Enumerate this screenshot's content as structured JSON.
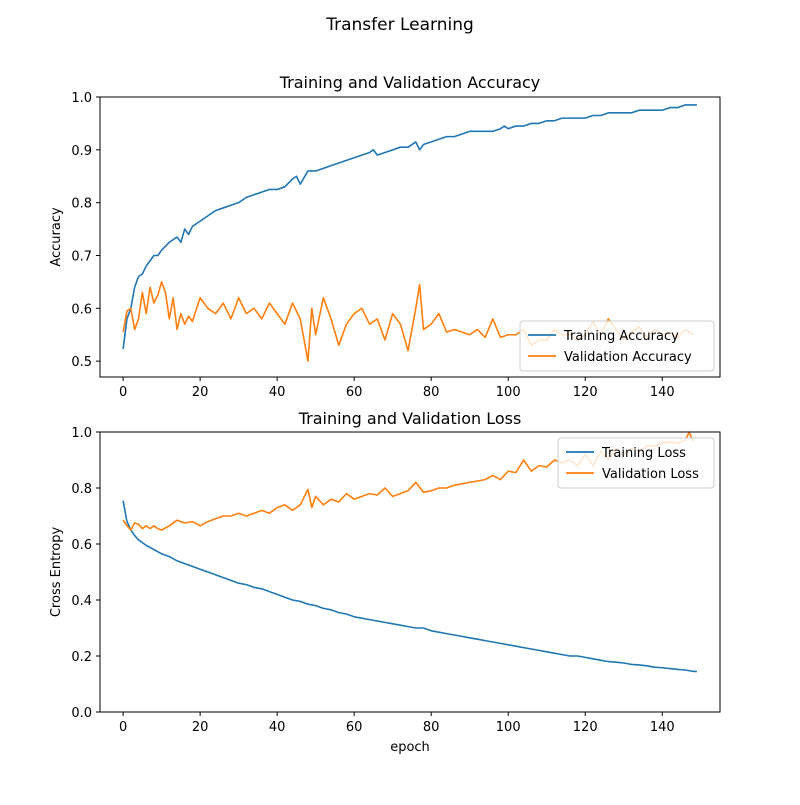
{
  "figure_title": "Transfer Learning",
  "colors": {
    "training": "#1f77b4",
    "validation": "#ff7f0e"
  },
  "chart_data": [
    {
      "type": "line",
      "title": "Training and Validation Accuracy",
      "xlabel": "",
      "ylabel": "Accuracy",
      "xlim": [
        -6,
        155
      ],
      "ylim": [
        0.47,
        1.0
      ],
      "xticks": [
        0,
        20,
        40,
        60,
        80,
        100,
        120,
        140
      ],
      "yticks": [
        0.5,
        0.6,
        0.7,
        0.8,
        0.9,
        1.0
      ],
      "ytick_labels": [
        "0.5",
        "0.6",
        "0.7",
        "0.8",
        "0.9",
        "1.0"
      ],
      "grid": false,
      "legend_position": "lower-right",
      "series": [
        {
          "name": "Training Accuracy",
          "color": "#1f77b4",
          "x": [
            0,
            1,
            2,
            3,
            4,
            5,
            6,
            7,
            8,
            9,
            10,
            12,
            14,
            15,
            16,
            17,
            18,
            20,
            22,
            24,
            26,
            28,
            30,
            32,
            34,
            36,
            38,
            40,
            42,
            44,
            45,
            46,
            48,
            50,
            52,
            54,
            56,
            58,
            60,
            62,
            64,
            65,
            66,
            68,
            70,
            72,
            74,
            76,
            77,
            78,
            80,
            82,
            84,
            86,
            88,
            90,
            92,
            94,
            96,
            98,
            99,
            100,
            102,
            104,
            106,
            108,
            110,
            112,
            114,
            116,
            118,
            120,
            122,
            124,
            126,
            128,
            130,
            132,
            134,
            136,
            138,
            140,
            142,
            144,
            146,
            148,
            149
          ],
          "y": [
            0.523,
            0.58,
            0.6,
            0.64,
            0.66,
            0.665,
            0.68,
            0.69,
            0.7,
            0.7,
            0.71,
            0.725,
            0.735,
            0.725,
            0.75,
            0.74,
            0.755,
            0.765,
            0.775,
            0.785,
            0.79,
            0.795,
            0.8,
            0.81,
            0.815,
            0.82,
            0.825,
            0.825,
            0.83,
            0.845,
            0.85,
            0.835,
            0.86,
            0.86,
            0.865,
            0.87,
            0.875,
            0.88,
            0.885,
            0.89,
            0.895,
            0.9,
            0.89,
            0.895,
            0.9,
            0.905,
            0.905,
            0.915,
            0.9,
            0.91,
            0.915,
            0.92,
            0.925,
            0.925,
            0.93,
            0.935,
            0.935,
            0.935,
            0.935,
            0.94,
            0.945,
            0.94,
            0.945,
            0.945,
            0.95,
            0.95,
            0.955,
            0.955,
            0.96,
            0.96,
            0.96,
            0.96,
            0.965,
            0.965,
            0.97,
            0.97,
            0.97,
            0.97,
            0.975,
            0.975,
            0.975,
            0.975,
            0.98,
            0.98,
            0.985,
            0.985,
            0.985
          ]
        },
        {
          "name": "Validation Accuracy",
          "color": "#ff7f0e",
          "x": [
            0,
            1,
            2,
            3,
            4,
            5,
            6,
            7,
            8,
            9,
            10,
            11,
            12,
            13,
            14,
            15,
            16,
            17,
            18,
            20,
            22,
            24,
            26,
            28,
            30,
            32,
            34,
            36,
            38,
            40,
            42,
            44,
            46,
            48,
            49,
            50,
            52,
            54,
            56,
            58,
            60,
            62,
            64,
            66,
            68,
            70,
            72,
            74,
            76,
            77,
            78,
            80,
            82,
            84,
            86,
            88,
            90,
            92,
            94,
            96,
            98,
            100,
            102,
            104,
            106,
            108,
            110,
            112,
            114,
            116,
            118,
            120,
            122,
            124,
            126,
            128,
            130,
            132,
            134,
            136,
            138,
            140,
            142,
            144,
            146,
            148
          ],
          "y": [
            0.555,
            0.595,
            0.6,
            0.56,
            0.58,
            0.63,
            0.59,
            0.64,
            0.61,
            0.625,
            0.65,
            0.63,
            0.58,
            0.62,
            0.56,
            0.59,
            0.57,
            0.585,
            0.575,
            0.62,
            0.6,
            0.59,
            0.61,
            0.58,
            0.62,
            0.59,
            0.6,
            0.58,
            0.61,
            0.59,
            0.57,
            0.61,
            0.58,
            0.5,
            0.6,
            0.55,
            0.62,
            0.58,
            0.53,
            0.57,
            0.59,
            0.6,
            0.57,
            0.58,
            0.54,
            0.59,
            0.57,
            0.52,
            0.6,
            0.645,
            0.56,
            0.57,
            0.59,
            0.555,
            0.56,
            0.555,
            0.55,
            0.56,
            0.545,
            0.58,
            0.545,
            0.55,
            0.55,
            0.56,
            0.53,
            0.54,
            0.54,
            0.56,
            0.55,
            0.55,
            0.54,
            0.55,
            0.575,
            0.55,
            0.58,
            0.56,
            0.54,
            0.555,
            0.565,
            0.545,
            0.56,
            0.55,
            0.555,
            0.545,
            0.56,
            0.55
          ]
        }
      ]
    },
    {
      "type": "line",
      "title": "Training and Validation Loss",
      "xlabel": "epoch",
      "ylabel": "Cross Entropy",
      "xlim": [
        -6,
        155
      ],
      "ylim": [
        0.0,
        1.0
      ],
      "xticks": [
        0,
        20,
        40,
        60,
        80,
        100,
        120,
        140
      ],
      "yticks": [
        0.0,
        0.2,
        0.4,
        0.6,
        0.8,
        1.0
      ],
      "ytick_labels": [
        "0.0",
        "0.2",
        "0.4",
        "0.6",
        "0.8",
        "1.0"
      ],
      "grid": false,
      "legend_position": "upper-right",
      "series": [
        {
          "name": "Training Loss",
          "color": "#1f77b4",
          "x": [
            0,
            1,
            2,
            3,
            4,
            5,
            6,
            8,
            10,
            12,
            14,
            16,
            18,
            20,
            22,
            24,
            26,
            28,
            30,
            32,
            34,
            36,
            38,
            40,
            42,
            44,
            46,
            48,
            50,
            52,
            54,
            56,
            58,
            60,
            62,
            64,
            66,
            68,
            70,
            72,
            74,
            76,
            78,
            80,
            82,
            84,
            86,
            88,
            90,
            92,
            94,
            96,
            98,
            100,
            102,
            104,
            106,
            108,
            110,
            112,
            114,
            116,
            118,
            120,
            122,
            124,
            126,
            128,
            130,
            132,
            134,
            136,
            138,
            140,
            142,
            144,
            146,
            148,
            149
          ],
          "y": [
            0.755,
            0.68,
            0.65,
            0.63,
            0.615,
            0.605,
            0.595,
            0.58,
            0.565,
            0.555,
            0.54,
            0.53,
            0.52,
            0.51,
            0.5,
            0.49,
            0.48,
            0.47,
            0.46,
            0.455,
            0.445,
            0.44,
            0.43,
            0.42,
            0.41,
            0.4,
            0.395,
            0.385,
            0.38,
            0.37,
            0.365,
            0.355,
            0.35,
            0.34,
            0.335,
            0.33,
            0.325,
            0.32,
            0.315,
            0.31,
            0.305,
            0.3,
            0.3,
            0.29,
            0.285,
            0.28,
            0.275,
            0.27,
            0.265,
            0.26,
            0.255,
            0.25,
            0.245,
            0.24,
            0.235,
            0.23,
            0.225,
            0.22,
            0.215,
            0.21,
            0.205,
            0.2,
            0.2,
            0.195,
            0.19,
            0.185,
            0.18,
            0.178,
            0.175,
            0.17,
            0.168,
            0.165,
            0.16,
            0.158,
            0.155,
            0.152,
            0.15,
            0.145,
            0.145
          ]
        },
        {
          "name": "Validation Loss",
          "color": "#ff7f0e",
          "x": [
            0,
            1,
            2,
            3,
            4,
            5,
            6,
            7,
            8,
            9,
            10,
            12,
            14,
            16,
            18,
            20,
            22,
            24,
            26,
            28,
            30,
            32,
            34,
            36,
            38,
            40,
            42,
            44,
            46,
            48,
            49,
            50,
            52,
            54,
            56,
            58,
            60,
            62,
            64,
            66,
            68,
            70,
            72,
            74,
            76,
            78,
            80,
            82,
            84,
            86,
            88,
            90,
            92,
            94,
            96,
            98,
            100,
            102,
            104,
            106,
            108,
            110,
            112,
            114,
            116,
            118,
            120,
            122,
            124,
            126,
            128,
            130,
            132,
            134,
            136,
            138,
            140,
            142,
            144,
            146,
            147,
            148
          ],
          "y": [
            0.685,
            0.665,
            0.65,
            0.675,
            0.67,
            0.655,
            0.665,
            0.655,
            0.665,
            0.655,
            0.65,
            0.665,
            0.685,
            0.675,
            0.68,
            0.665,
            0.68,
            0.69,
            0.7,
            0.7,
            0.71,
            0.7,
            0.71,
            0.72,
            0.71,
            0.73,
            0.74,
            0.72,
            0.74,
            0.795,
            0.73,
            0.77,
            0.74,
            0.76,
            0.75,
            0.78,
            0.76,
            0.77,
            0.78,
            0.775,
            0.8,
            0.77,
            0.78,
            0.79,
            0.82,
            0.785,
            0.79,
            0.8,
            0.8,
            0.81,
            0.815,
            0.82,
            0.825,
            0.83,
            0.845,
            0.83,
            0.86,
            0.855,
            0.9,
            0.86,
            0.88,
            0.875,
            0.9,
            0.89,
            0.9,
            0.88,
            0.92,
            0.88,
            0.93,
            0.9,
            0.94,
            0.92,
            0.94,
            0.93,
            0.95,
            0.95,
            0.96,
            0.965,
            0.96,
            0.97,
            1.0,
            0.965
          ]
        }
      ]
    }
  ]
}
